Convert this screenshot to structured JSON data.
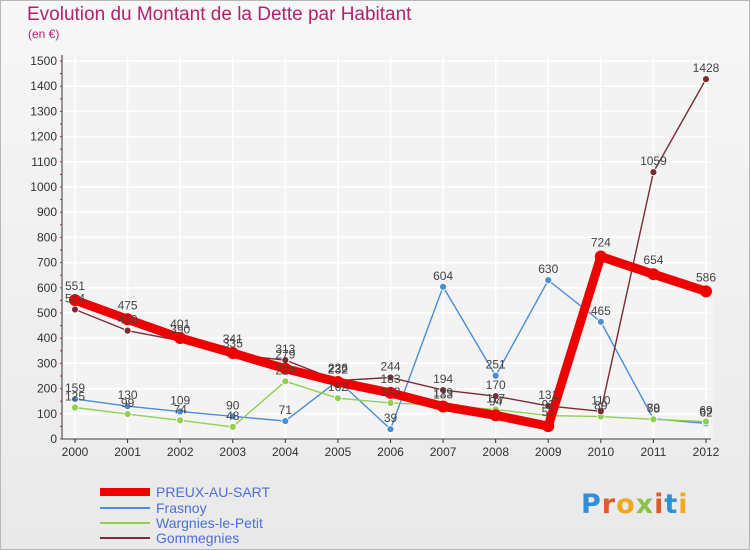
{
  "chart_data": {
    "type": "line",
    "title": "Evolution du Montant de la Dette par Habitant",
    "subtitle": "(en €)",
    "xlabel": "",
    "ylabel": "",
    "ylim": [
      0,
      1500
    ],
    "y_ticks": [
      0,
      100,
      200,
      300,
      400,
      500,
      600,
      700,
      800,
      900,
      1000,
      1100,
      1200,
      1300,
      1400,
      1500
    ],
    "categories": [
      "2000",
      "2001",
      "2002",
      "2003",
      "2004",
      "2005",
      "2006",
      "2007",
      "2008",
      "2009",
      "2010",
      "2011",
      "2012"
    ],
    "grid": true,
    "legend_position": "bottom-left",
    "series": [
      {
        "name": "PREUX-AU-SART",
        "color": "#ee0000",
        "values": [
          551,
          475,
          401,
          341,
          279,
          226,
          183,
          129,
          94,
          51,
          724,
          654,
          586
        ],
        "labels": [
          "551",
          "475",
          "401",
          "341",
          "279",
          "226",
          "183",
          "129",
          "94",
          "51",
          "724",
          "654",
          "586"
        ]
      },
      {
        "name": "Frasnoy",
        "color": "#4a8ed3",
        "values": [
          159,
          130,
          109,
          90,
          71,
          232,
          39,
          604,
          251,
          630,
          465,
          80,
          62
        ],
        "labels": [
          "159",
          "130",
          "109",
          "90",
          "71",
          "232",
          "39",
          "604",
          "251",
          "630",
          "465",
          "80",
          "62"
        ]
      },
      {
        "name": "Wargnies-le-Petit",
        "color": "#8fd14f",
        "values": [
          125,
          99,
          74,
          48,
          229,
          162,
          143,
          133,
          117,
          93,
          89,
          78,
          69
        ],
        "labels": [
          "125",
          "99",
          "74",
          "48",
          "229",
          "162",
          "143",
          "133",
          "117",
          "93",
          "89",
          "78",
          "69"
        ]
      },
      {
        "name": "Gommegnies",
        "color": "#7a2b33",
        "values": [
          514,
          430,
          390,
          335,
          313,
          232,
          244,
          194,
          170,
          131,
          110,
          1059,
          1428
        ],
        "labels": [
          "514",
          "430",
          "390",
          "335",
          "313",
          "232",
          "244",
          "194",
          "170",
          "131",
          "110",
          "1059",
          "1428"
        ]
      }
    ]
  },
  "logo": {
    "letters": [
      "P",
      "r",
      "o",
      "x",
      "i",
      "t",
      "i"
    ]
  }
}
